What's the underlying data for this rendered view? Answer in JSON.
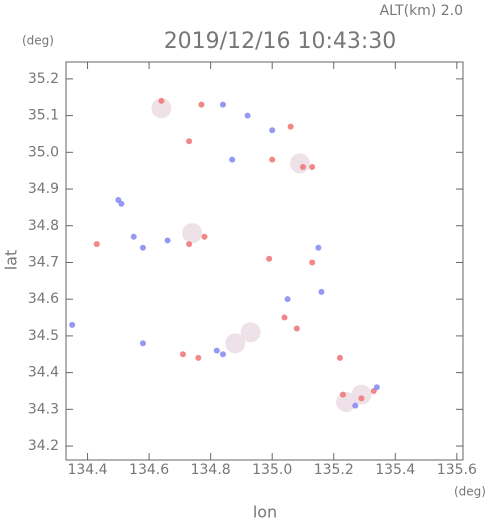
{
  "chart_data": {
    "type": "scatter",
    "top_label": "ALT(km) 2.0",
    "title": "2019/12/16 10:43:30",
    "y_unit": "(deg)",
    "x_unit": "(deg)",
    "xlabel": "lon",
    "ylabel": "lat",
    "xlim": [
      134.33,
      135.62
    ],
    "ylim": [
      34.162,
      35.246
    ],
    "xticks": [
      134.4,
      134.6,
      134.8,
      {
        "value": 135,
        "label": "135.0"
      },
      135.2,
      135.4,
      135.6
    ],
    "yticks": [
      34.2,
      34.3,
      34.4,
      34.5,
      34.6,
      34.7,
      34.8,
      34.9,
      {
        "value": 35,
        "label": "35.0"
      },
      35.1,
      35.2
    ],
    "series": [
      {
        "color": "#ecdfe6",
        "size": 10,
        "x": [
          134.93,
          135.29,
          134.74,
          135.09,
          134.64,
          134.88,
          135.24
        ],
        "y": [
          34.51,
          34.34,
          34.78,
          34.97,
          35.12,
          34.48,
          34.32
        ]
      },
      {
        "color": "#f07a7a",
        "size": 3,
        "x": [
          134.64,
          134.77,
          134.73,
          135.0,
          135.1,
          135.13,
          135.06,
          134.73,
          134.78,
          134.99,
          135.13,
          135.04,
          135.08,
          134.76,
          135.22,
          135.29,
          135.33,
          135.23,
          134.43,
          134.71
        ],
        "y": [
          35.14,
          35.13,
          35.03,
          34.98,
          34.96,
          34.96,
          35.07,
          34.75,
          34.77,
          34.71,
          34.7,
          34.55,
          34.52,
          34.44,
          34.44,
          34.33,
          34.35,
          34.34,
          34.75,
          34.45
        ]
      },
      {
        "color": "#8a8ef2",
        "size": 3,
        "x": [
          134.5,
          134.51,
          134.84,
          134.92,
          135.0,
          134.55,
          134.58,
          134.66,
          134.82,
          134.84,
          135.05,
          135.15,
          134.35,
          134.58,
          135.27,
          135.34,
          135.16,
          134.87
        ],
        "y": [
          34.87,
          34.86,
          35.13,
          35.1,
          35.06,
          34.77,
          34.74,
          34.76,
          34.46,
          34.45,
          34.6,
          34.74,
          34.53,
          34.48,
          34.31,
          34.36,
          34.62,
          34.98
        ]
      }
    ]
  }
}
